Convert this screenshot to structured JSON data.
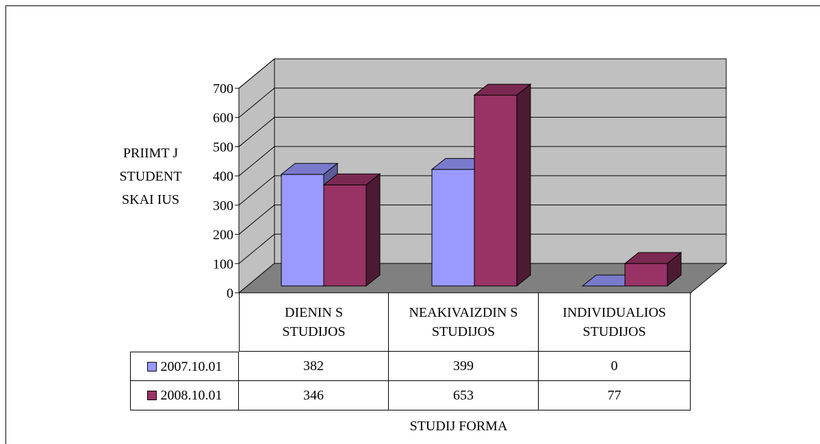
{
  "chart_data": {
    "type": "bar",
    "title": "",
    "ylabel_lines": [
      "PRIIMT  J",
      "STUDENT",
      "SKAI  IUS"
    ],
    "xlabel": "STUDIJ    FORMA",
    "categories": [
      [
        "DIENIN  S",
        "STUDIJOS"
      ],
      [
        "NEAKIVAIZDIN  S",
        "STUDIJOS"
      ],
      [
        "INDIVIDUALIOS",
        "STUDIJOS"
      ]
    ],
    "series": [
      {
        "name": "2007.10.01",
        "values": [
          382,
          399,
          0
        ],
        "color": "#9999ff",
        "top_color": "#7a7acc",
        "side_color": "#5c5c99"
      },
      {
        "name": "2008.10.01",
        "values": [
          346,
          653,
          77
        ],
        "color": "#993366",
        "top_color": "#7a2952",
        "side_color": "#4d1a33"
      }
    ],
    "ylim": [
      0,
      700
    ],
    "yticks": [
      0,
      100,
      200,
      300,
      400,
      500,
      600,
      700
    ],
    "grid": true,
    "legend": "data-table"
  }
}
